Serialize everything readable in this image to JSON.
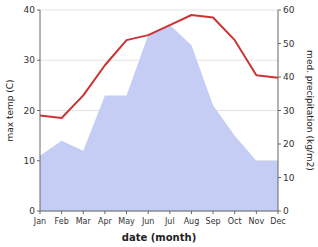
{
  "chart_data": {
    "type": "line",
    "xlabel": "date (month)",
    "ylabel": "max temp (C)",
    "y2label": "med. precipitation (kg/m2)",
    "categories": [
      "Jan",
      "Feb",
      "Mar",
      "Apr",
      "May",
      "Jun",
      "Jul",
      "Aug",
      "Sep",
      "Oct",
      "Nov",
      "Dec"
    ],
    "series": [
      {
        "type": "area",
        "color": "#c5cdf5",
        "values": [
          11,
          14,
          12,
          23,
          23,
          35,
          37,
          33,
          21,
          15,
          10,
          10
        ]
      },
      {
        "type": "line",
        "color": "#cc3333",
        "values": [
          19,
          18.5,
          23,
          29,
          34,
          35,
          37,
          39,
          38.5,
          34,
          27,
          26.5
        ]
      }
    ],
    "ylim": [
      0,
      40
    ],
    "yticks": [
      0,
      10,
      20,
      30,
      40
    ],
    "y2lim": [
      0,
      60
    ],
    "y2ticks": [
      0,
      10,
      20,
      30,
      40,
      50,
      60
    ],
    "grid": true
  }
}
